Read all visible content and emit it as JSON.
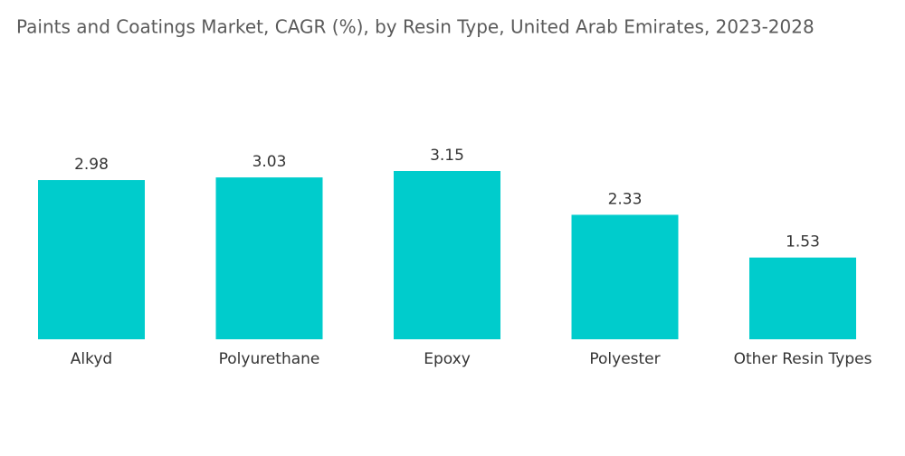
{
  "chart_data": {
    "type": "bar",
    "title": "Paints and Coatings Market, CAGR (%), by Resin Type, United Arab Emirates, 2023-2028",
    "categories": [
      "Alkyd",
      "Polyurethane",
      "Epoxy",
      "Polyester",
      "Other Resin Types"
    ],
    "values": [
      2.98,
      3.03,
      3.15,
      2.33,
      1.53
    ],
    "color": "#00cccc"
  }
}
